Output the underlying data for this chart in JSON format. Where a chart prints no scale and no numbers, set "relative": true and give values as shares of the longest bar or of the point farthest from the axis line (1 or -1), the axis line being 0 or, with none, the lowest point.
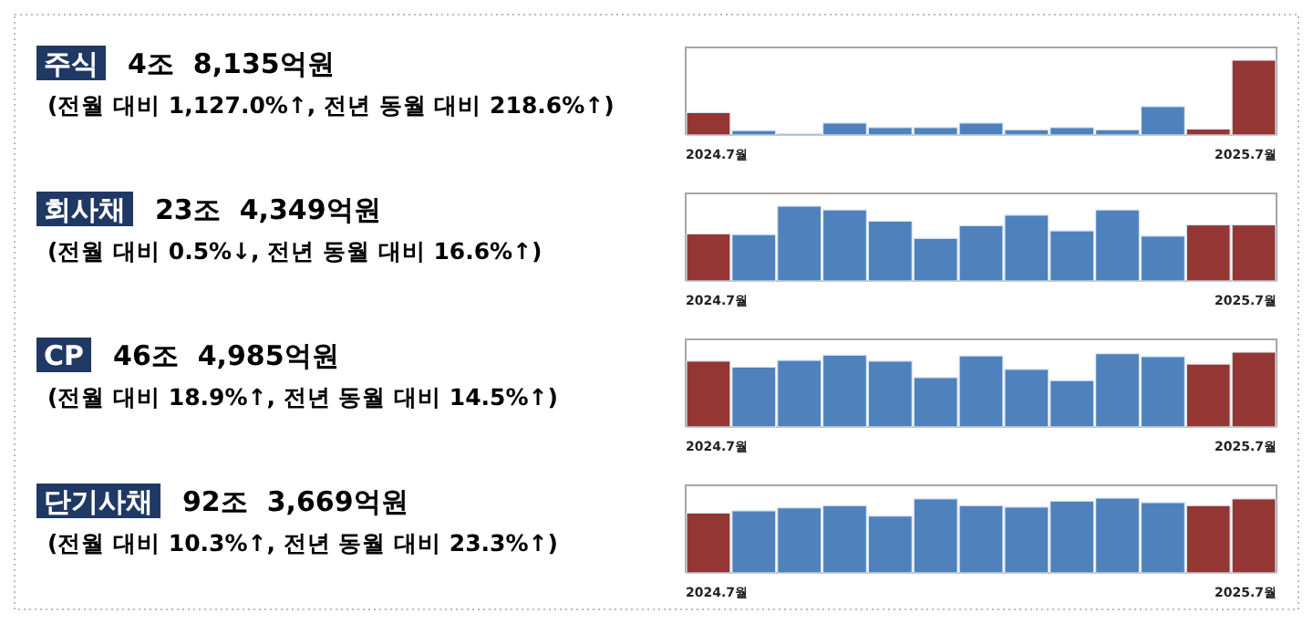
{
  "chart_data": [
    {
      "type": "other",
      "title": "주식",
      "subtitle": "4조  8,135억원",
      "annotations": [
        "(전월 대비 1,127.0%↑, 전년 동월 대비 218.6%↑)"
      ]
    },
    {
      "type": "bar",
      "relative": true,
      "categories": [
        "2024.7월",
        null,
        null,
        null,
        null,
        null,
        null,
        null,
        null,
        null,
        null,
        null,
        "2025.7월"
      ],
      "values": [
        0.3,
        0.06,
        0.02,
        0.16,
        0.1,
        0.1,
        0.16,
        0.07,
        0.1,
        0.07,
        0.38,
        0.08,
        1
      ],
      "colors": [
        "#943634",
        "#4f81bd",
        "#4f81bd",
        "#4f81bd",
        "#4f81bd",
        "#4f81bd",
        "#4f81bd",
        "#4f81bd",
        "#4f81bd",
        "#4f81bd",
        "#4f81bd",
        "#943634",
        "#943634"
      ]
    },
    {
      "type": "other",
      "title": "회사채",
      "subtitle": "23조  4,349억원",
      "annotations": [
        "(전월 대비 0.5%↓, 전년 동월 대비 16.6%↑)"
      ]
    },
    {
      "type": "bar",
      "relative": true,
      "categories": [
        "2024.7월",
        null,
        null,
        null,
        null,
        null,
        null,
        null,
        null,
        null,
        null,
        null,
        "2025.7월"
      ],
      "values": [
        0.63,
        0.62,
        1,
        0.95,
        0.8,
        0.57,
        0.74,
        0.88,
        0.67,
        0.95,
        0.6,
        0.75,
        0.75
      ],
      "colors": [
        "#943634",
        "#4f81bd",
        "#4f81bd",
        "#4f81bd",
        "#4f81bd",
        "#4f81bd",
        "#4f81bd",
        "#4f81bd",
        "#4f81bd",
        "#4f81bd",
        "#4f81bd",
        "#943634",
        "#943634"
      ]
    },
    {
      "type": "other",
      "title": "CP",
      "subtitle": "46조  4,985억원",
      "annotations": [
        "(전월 대비 18.9%↑, 전년 동월 대비 14.5%↑)"
      ]
    },
    {
      "type": "bar",
      "relative": true,
      "categories": [
        "2024.7월",
        null,
        null,
        null,
        null,
        null,
        null,
        null,
        null,
        null,
        null,
        null,
        "2025.7월"
      ],
      "values": [
        0.88,
        0.8,
        0.89,
        0.96,
        0.88,
        0.66,
        0.95,
        0.77,
        0.62,
        0.98,
        0.94,
        0.84,
        1
      ],
      "colors": [
        "#943634",
        "#4f81bd",
        "#4f81bd",
        "#4f81bd",
        "#4f81bd",
        "#4f81bd",
        "#4f81bd",
        "#4f81bd",
        "#4f81bd",
        "#4f81bd",
        "#4f81bd",
        "#943634",
        "#943634"
      ]
    },
    {
      "type": "other",
      "title": "단기사채",
      "subtitle": "92조  3,669억원",
      "annotations": [
        "(전월 대비 10.3%↑, 전년 동월 대비 23.3%↑)"
      ]
    },
    {
      "type": "bar",
      "relative": true,
      "categories": [
        "2024.7월",
        null,
        null,
        null,
        null,
        null,
        null,
        null,
        null,
        null,
        null,
        null,
        "2025.7월"
      ],
      "values": [
        0.8,
        0.83,
        0.87,
        0.9,
        0.76,
        0.99,
        0.9,
        0.88,
        0.96,
        1,
        0.94,
        0.9,
        0.99
      ],
      "colors": [
        "#943634",
        "#4f81bd",
        "#4f81bd",
        "#4f81bd",
        "#4f81bd",
        "#4f81bd",
        "#4f81bd",
        "#4f81bd",
        "#4f81bd",
        "#4f81bd",
        "#4f81bd",
        "#943634",
        "#943634"
      ]
    }
  ]
}
